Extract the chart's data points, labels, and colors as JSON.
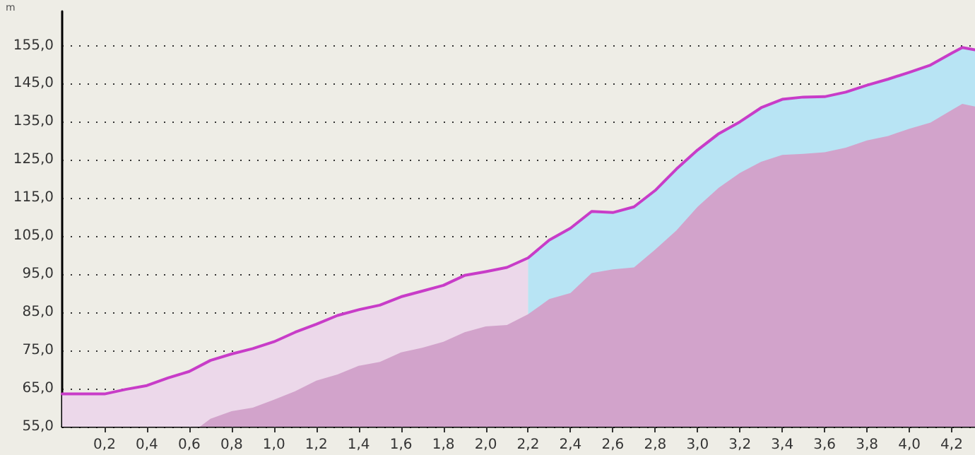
{
  "chart_data": {
    "type": "area",
    "ylabel": "m",
    "series": [
      {
        "color": "#ecd8ea",
        "x": [
          0,
          0.2,
          0.3,
          0.4,
          0.5,
          0.6,
          0.7,
          0.8,
          0.9,
          1.0,
          1.1,
          1.2,
          1.3,
          1.4,
          1.5,
          1.6,
          1.7,
          1.8,
          1.9,
          2.0,
          2.1,
          2.2
        ],
        "values": [
          63.6,
          63.6,
          64.8,
          65.8,
          67.8,
          69.5,
          72.4,
          74.1,
          75.5,
          77.3,
          79.8,
          81.9,
          84.2,
          85.7,
          86.9,
          89.1,
          90.6,
          92.1,
          94.7,
          95.7,
          96.8,
          99.3
        ]
      },
      {
        "color": "#b8e4f4",
        "x": [
          2.2,
          2.3,
          2.4,
          2.5,
          2.6,
          2.7,
          2.8,
          2.9,
          3.0,
          3.1,
          3.2,
          3.3,
          3.4,
          3.5,
          3.6,
          3.7,
          3.8,
          3.9,
          4.0,
          4.1,
          4.2,
          4.25,
          4.31
        ],
        "values": [
          99.3,
          104.0,
          107.1,
          111.5,
          111.2,
          112.7,
          117.0,
          122.6,
          127.6,
          131.9,
          135.0,
          138.7,
          140.9,
          141.5,
          141.6,
          142.8,
          144.6,
          146.2,
          148.0,
          149.9,
          153.0,
          154.5,
          153.9
        ]
      },
      {
        "color": "#d2a3cb",
        "x": [
          0.65,
          0.7,
          0.8,
          0.9,
          1.0,
          1.1,
          1.2,
          1.3,
          1.4,
          1.5,
          1.6,
          1.7,
          1.8,
          1.9,
          2.0,
          2.1,
          2.2,
          2.3,
          2.4,
          2.5,
          2.6,
          2.7,
          2.8,
          2.9,
          3.0,
          3.1,
          3.2,
          3.3,
          3.4,
          3.5,
          3.6,
          3.7,
          3.8,
          3.9,
          4.0,
          4.1,
          4.2,
          4.25,
          4.31
        ],
        "values": [
          55,
          57.1,
          59.1,
          60.0,
          62.1,
          64.3,
          67.1,
          68.7,
          71.0,
          72.0,
          74.5,
          75.7,
          77.3,
          79.8,
          81.3,
          81.7,
          84.5,
          88.5,
          90.1,
          95.3,
          96.3,
          96.8,
          101.5,
          106.5,
          112.7,
          117.7,
          121.6,
          124.5,
          126.3,
          126.6,
          127.0,
          128.2,
          130.1,
          131.3,
          133.2,
          134.8,
          138.1,
          139.7,
          139.0
        ]
      },
      {
        "type": "line",
        "color": "#c83cc8",
        "x": [
          0,
          0.2,
          0.3,
          0.4,
          0.5,
          0.6,
          0.7,
          0.8,
          0.9,
          1.0,
          1.1,
          1.2,
          1.3,
          1.4,
          1.5,
          1.6,
          1.7,
          1.8,
          1.9,
          2.0,
          2.1,
          2.2,
          2.3,
          2.4,
          2.5,
          2.6,
          2.7,
          2.8,
          2.9,
          3.0,
          3.1,
          3.2,
          3.3,
          3.4,
          3.5,
          3.6,
          3.7,
          3.8,
          3.9,
          4.0,
          4.1,
          4.2,
          4.25,
          4.31
        ],
        "values": [
          63.6,
          63.6,
          64.8,
          65.8,
          67.8,
          69.5,
          72.4,
          74.1,
          75.5,
          77.3,
          79.8,
          81.9,
          84.2,
          85.7,
          86.9,
          89.1,
          90.6,
          92.1,
          94.7,
          95.7,
          96.8,
          99.3,
          104.0,
          107.1,
          111.5,
          111.2,
          112.7,
          117.0,
          122.6,
          127.6,
          131.9,
          135.0,
          138.7,
          140.9,
          141.5,
          141.6,
          142.8,
          144.6,
          146.2,
          148.0,
          149.9,
          153.0,
          154.5,
          153.9
        ]
      }
    ],
    "xlim": [
      0,
      4.31
    ],
    "xticks": [
      {
        "value": 0.2,
        "label": "0,2"
      },
      {
        "value": 0.4,
        "label": "0,4"
      },
      {
        "value": 0.6,
        "label": "0,6"
      },
      {
        "value": 0.8,
        "label": "0,8"
      },
      {
        "value": 1.0,
        "label": "1,0"
      },
      {
        "value": 1.2,
        "label": "1,2"
      },
      {
        "value": 1.4,
        "label": "1,4"
      },
      {
        "value": 1.6,
        "label": "1,6"
      },
      {
        "value": 1.8,
        "label": "1,8"
      },
      {
        "value": 2.0,
        "label": "2,0"
      },
      {
        "value": 2.2,
        "label": "2,2"
      },
      {
        "value": 2.4,
        "label": "2,4"
      },
      {
        "value": 2.6,
        "label": "2,6"
      },
      {
        "value": 2.8,
        "label": "2,8"
      },
      {
        "value": 3.0,
        "label": "3,0"
      },
      {
        "value": 3.2,
        "label": "3,2"
      },
      {
        "value": 3.4,
        "label": "3,4"
      },
      {
        "value": 3.6,
        "label": "3,6"
      },
      {
        "value": 3.8,
        "label": "3,8"
      },
      {
        "value": 4.0,
        "label": "4,0"
      },
      {
        "value": 4.2,
        "label": "4,2"
      }
    ],
    "ylim": [
      55,
      164
    ],
    "yticks": [
      {
        "value": 55,
        "label": "55,0"
      },
      {
        "value": 65,
        "label": "65,0"
      },
      {
        "value": 75,
        "label": "75,0"
      },
      {
        "value": 85,
        "label": "85,0"
      },
      {
        "value": 95,
        "label": "95,0"
      },
      {
        "value": 105,
        "label": "105,0"
      },
      {
        "value": 115,
        "label": "115,0"
      },
      {
        "value": 125,
        "label": "125,0"
      },
      {
        "value": 135,
        "label": "135,0"
      },
      {
        "value": 145,
        "label": "145,0"
      },
      {
        "value": 155,
        "label": "155,0"
      }
    ],
    "grid": "y",
    "marker": "none",
    "line_style": "solid"
  }
}
